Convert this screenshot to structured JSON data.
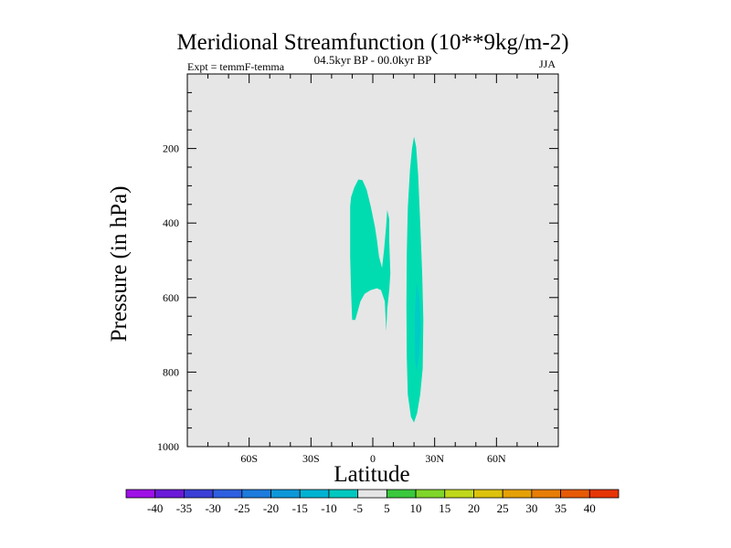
{
  "chart_data": {
    "type": "contour",
    "title": "Meridional Streamfunction (10**9kg/m-2)",
    "subtitle": "04.5kyr BP - 00.0kyr BP",
    "left_label": "Expt = temmF-temma",
    "right_label": "JJA",
    "xlabel": "Latitude",
    "ylabel": "Pressure (in hPa)",
    "xlim": [
      -90,
      90
    ],
    "ylim": [
      1000,
      0
    ],
    "x_ticks": [
      {
        "value": -60,
        "label": "60S"
      },
      {
        "value": -30,
        "label": "30S"
      },
      {
        "value": 0,
        "label": "0"
      },
      {
        "value": 30,
        "label": "30N"
      },
      {
        "value": 60,
        "label": "60N"
      }
    ],
    "y_ticks": [
      {
        "value": 200,
        "label": "200"
      },
      {
        "value": 400,
        "label": "400"
      },
      {
        "value": 600,
        "label": "600"
      },
      {
        "value": 800,
        "label": "800"
      },
      {
        "value": 1000,
        "label": "1000"
      }
    ],
    "background_color": "#e6e6e6",
    "contour_regions": [
      {
        "name": "anomaly-cell-left",
        "level": -5,
        "color": "#00dcb0",
        "points": [
          [
            -11,
            355
          ],
          [
            -10.5,
            330
          ],
          [
            -9,
            305
          ],
          [
            -7,
            283
          ],
          [
            -5,
            285
          ],
          [
            -3,
            310
          ],
          [
            -1,
            355
          ],
          [
            1,
            410
          ],
          [
            2,
            445
          ],
          [
            3,
            490
          ],
          [
            4.5,
            520
          ],
          [
            5.5,
            470
          ],
          [
            6.5,
            405
          ],
          [
            7,
            365
          ],
          [
            8,
            390
          ],
          [
            8,
            450
          ],
          [
            8.5,
            535
          ],
          [
            8,
            580
          ],
          [
            7,
            630
          ],
          [
            6.5,
            690
          ],
          [
            5.8,
            610
          ],
          [
            4,
            580
          ],
          [
            2,
            575
          ],
          [
            -1,
            580
          ],
          [
            -4,
            590
          ],
          [
            -6,
            610
          ],
          [
            -7.5,
            640
          ],
          [
            -8.5,
            660
          ],
          [
            -10,
            660
          ],
          [
            -10.5,
            590
          ],
          [
            -11,
            490
          ],
          [
            -11,
            410
          ]
        ]
      },
      {
        "name": "anomaly-cell-right",
        "level": -5,
        "color": "#00dcb0",
        "points": [
          [
            18,
            260
          ],
          [
            19,
            200
          ],
          [
            20,
            168
          ],
          [
            21,
            195
          ],
          [
            22,
            270
          ],
          [
            23,
            400
          ],
          [
            24,
            540
          ],
          [
            24.5,
            660
          ],
          [
            24.2,
            790
          ],
          [
            23,
            860
          ],
          [
            21.5,
            910
          ],
          [
            20,
            935
          ],
          [
            18.5,
            920
          ],
          [
            17,
            860
          ],
          [
            16.5,
            760
          ],
          [
            16.3,
            620
          ],
          [
            16.5,
            480
          ],
          [
            17,
            360
          ]
        ]
      },
      {
        "name": "anomaly-core-right",
        "level": -10,
        "color": "#00ccc6",
        "points": [
          [
            21.2,
            560
          ],
          [
            22.6,
            600
          ],
          [
            23.2,
            680
          ],
          [
            22.5,
            750
          ],
          [
            21.2,
            800
          ],
          [
            20.4,
            760
          ],
          [
            20.3,
            650
          ]
        ]
      }
    ],
    "colorbar": {
      "levels": [
        "-40",
        "-35",
        "-30",
        "-25",
        "-20",
        "-15",
        "-10",
        "-5",
        "5",
        "10",
        "15",
        "20",
        "25",
        "30",
        "35",
        "40"
      ],
      "colors": [
        "#9e10e6",
        "#6a19d8",
        "#3a3ed6",
        "#2e5fe0",
        "#1c7bdc",
        "#0d97d8",
        "#00b2d2",
        "#00c8bf",
        "#e5e5e5",
        "#3ac83c",
        "#7fd62a",
        "#c0d81a",
        "#ddc20c",
        "#e5a006",
        "#e67d06",
        "#e65a06",
        "#e63506"
      ]
    }
  }
}
